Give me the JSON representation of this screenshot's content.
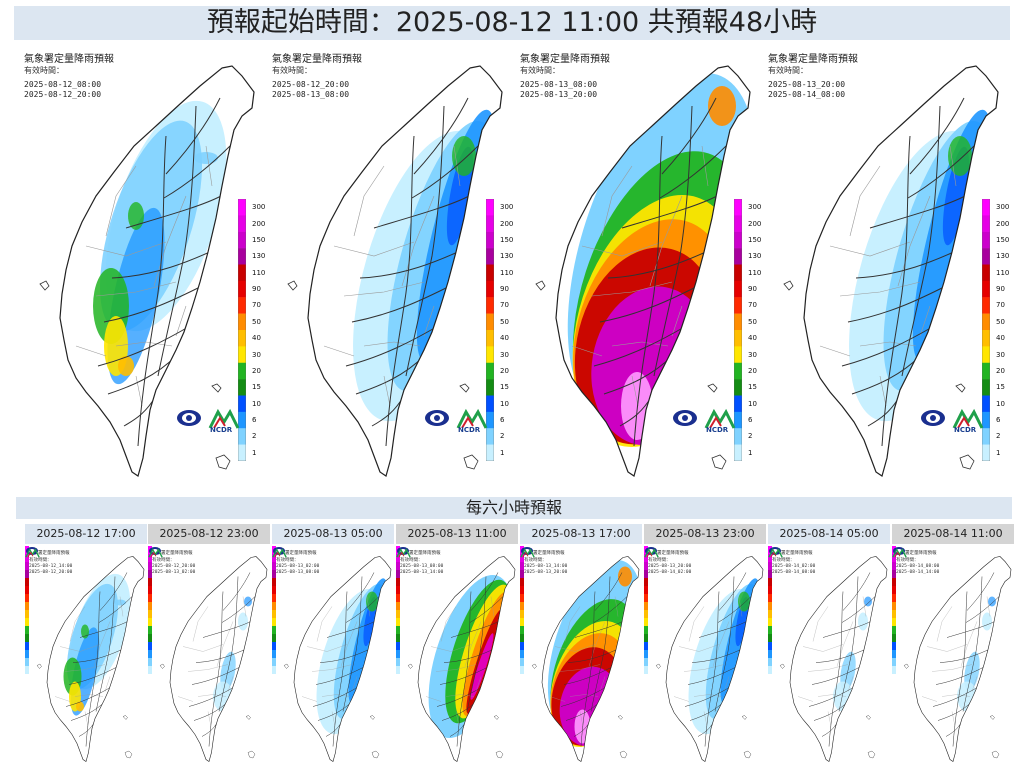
{
  "header": {
    "title": "預報起始時間：2025-08-12 11:00 共預報48小時"
  },
  "section_six_hour": {
    "title": "每六小時預報"
  },
  "panel_labels": {
    "title": "氣象署定量降雨預報",
    "valid_label": "有效時間：",
    "logo_text": "NCDR"
  },
  "colorbar": {
    "labels": [
      "300",
      "200",
      "150",
      "130",
      "110",
      "90",
      "70",
      "50",
      "40",
      "30",
      "20",
      "15",
      "10",
      "6",
      "2",
      "1"
    ],
    "colors": [
      "#ff00ff",
      "#e600e6",
      "#cc00cc",
      "#a8009e",
      "#c80000",
      "#e60000",
      "#ff2a00",
      "#ff8c00",
      "#ffbe00",
      "#ffe600",
      "#22b422",
      "#148c14",
      "#0050ff",
      "#1e96ff",
      "#7fd2ff",
      "#c8f0ff"
    ]
  },
  "big_panels": [
    {
      "valid_from": "2025-08-12_08:00",
      "valid_to": "2025-08-12_20:00",
      "intensity": "light"
    },
    {
      "valid_from": "2025-08-12_20:00",
      "valid_to": "2025-08-13_08:00",
      "intensity": "moderate"
    },
    {
      "valid_from": "2025-08-13_08:00",
      "valid_to": "2025-08-13_20:00",
      "intensity": "extreme"
    },
    {
      "valid_from": "2025-08-13_20:00",
      "valid_to": "2025-08-14_08:00",
      "intensity": "moderate"
    }
  ],
  "small_panels": [
    {
      "time": "2025-08-12 17:00",
      "tab_style": "blue",
      "valid_from": "2025-08-12_14:00",
      "valid_to": "2025-08-12_20:00",
      "intensity": "light"
    },
    {
      "time": "2025-08-12 23:00",
      "tab_style": "gray",
      "valid_from": "2025-08-12_20:00",
      "valid_to": "2025-08-13_02:00",
      "intensity": "minimal"
    },
    {
      "time": "2025-08-13 05:00",
      "tab_style": "blue",
      "valid_from": "2025-08-13_02:00",
      "valid_to": "2025-08-13_08:00",
      "intensity": "moderate"
    },
    {
      "time": "2025-08-13 11:00",
      "tab_style": "gray",
      "valid_from": "2025-08-13_08:00",
      "valid_to": "2025-08-13_14:00",
      "intensity": "heavy"
    },
    {
      "time": "2025-08-13 17:00",
      "tab_style": "blue",
      "valid_from": "2025-08-13_14:00",
      "valid_to": "2025-08-13_20:00",
      "intensity": "extreme"
    },
    {
      "time": "2025-08-13 23:00",
      "tab_style": "gray",
      "valid_from": "2025-08-13_20:00",
      "valid_to": "2025-08-14_02:00",
      "intensity": "moderate"
    },
    {
      "time": "2025-08-14 05:00",
      "tab_style": "blue",
      "valid_from": "2025-08-14_02:00",
      "valid_to": "2025-08-14_08:00",
      "intensity": "minimal"
    },
    {
      "time": "2025-08-14 11:00",
      "tab_style": "gray",
      "valid_from": "2025-08-14_08:00",
      "valid_to": "2025-08-14_14:00",
      "intensity": "minimal"
    }
  ]
}
